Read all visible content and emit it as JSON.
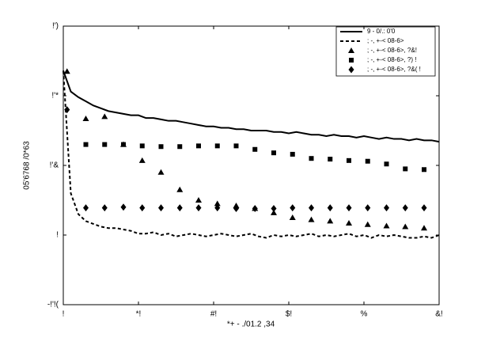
{
  "chart_data": {
    "type": "line",
    "xlabel": "*+ - ./01.2 ,34",
    "ylabel": "05'6768 /0*63",
    "xlim": [
      0,
      50
    ],
    "xticks": [
      {
        "value": 0,
        "label": "!"
      },
      {
        "value": 10,
        "label": "*!"
      },
      {
        "value": 20,
        "label": "#!"
      },
      {
        "value": 30,
        "label": "$!"
      },
      {
        "value": 40,
        "label": "%"
      },
      {
        "value": 50,
        "label": "&!"
      }
    ],
    "ylim": [
      -0.05,
      0.15
    ],
    "yticks": [
      {
        "value": -0.05,
        "label": "-!'!("
      },
      {
        "value": 0,
        "label": "!"
      },
      {
        "value": 0.05,
        "label": "!'&"
      },
      {
        "value": 0.1,
        "label": "!'*"
      },
      {
        "value": 0.15,
        "label": "!')"
      }
    ],
    "legend": "upper right",
    "series": [
      {
        "name": "9 - 0/.: 0'0",
        "color": "#000",
        "style": "solid",
        "x": [
          0,
          1,
          2,
          3,
          4,
          5,
          6,
          7,
          8,
          9,
          10,
          11,
          12,
          13,
          14,
          15,
          16,
          17,
          18,
          19,
          20,
          21,
          22,
          23,
          24,
          25,
          26,
          27,
          28,
          29,
          30,
          31,
          32,
          33,
          34,
          35,
          36,
          37,
          38,
          39,
          40,
          41,
          42,
          43,
          44,
          45,
          46,
          47,
          48,
          49,
          50
        ],
        "values": [
          0.118,
          0.103,
          0.099,
          0.096,
          0.093,
          0.091,
          0.089,
          0.088,
          0.087,
          0.086,
          0.086,
          0.084,
          0.084,
          0.083,
          0.082,
          0.082,
          0.081,
          0.08,
          0.079,
          0.078,
          0.078,
          0.077,
          0.077,
          0.076,
          0.076,
          0.075,
          0.075,
          0.075,
          0.074,
          0.074,
          0.073,
          0.074,
          0.073,
          0.072,
          0.072,
          0.071,
          0.072,
          0.071,
          0.071,
          0.07,
          0.071,
          0.07,
          0.069,
          0.07,
          0.069,
          0.069,
          0.068,
          0.069,
          0.068,
          0.068,
          0.067
        ]
      },
      {
        "name": "; -, +-< 08-6>",
        "color": "#000",
        "style": "dashed",
        "x": [
          0,
          1,
          2,
          3,
          4,
          5,
          6,
          7,
          8,
          9,
          10,
          11,
          12,
          13,
          14,
          15,
          16,
          17,
          18,
          19,
          20,
          21,
          22,
          23,
          24,
          25,
          26,
          27,
          28,
          29,
          30,
          31,
          32,
          33,
          34,
          35,
          36,
          37,
          38,
          39,
          40,
          41,
          42,
          43,
          44,
          45,
          46,
          47,
          48,
          49,
          50
        ],
        "values": [
          0.118,
          0.03,
          0.015,
          0.01,
          0.008,
          0.006,
          0.005,
          0.005,
          0.004,
          0.003,
          0.001,
          0.001,
          0.002,
          0,
          0.001,
          -0.001,
          0,
          0.001,
          0,
          -0.001,
          0,
          0.001,
          0,
          -0.001,
          0,
          0.001,
          -0.001,
          -0.002,
          0,
          -0.001,
          0,
          -0.001,
          0,
          0.001,
          -0.001,
          0,
          -0.001,
          0,
          0.001,
          -0.001,
          0,
          -0.002,
          0,
          -0.001,
          0,
          -0.001,
          -0.002,
          -0.002,
          -0.001,
          -0.002,
          0
        ]
      },
      {
        "name": "; -, +-< 08-6>, ?&!",
        "color": "#000",
        "marker": "triangle",
        "x": [
          0.5,
          3,
          5.5,
          8,
          10.5,
          13,
          15.5,
          18,
          20.5,
          23,
          25.5,
          28,
          30.5,
          33,
          35.5,
          38,
          40.5,
          43,
          45.5,
          48
        ],
        "values": [
          0.1175,
          0.0835,
          0.085,
          0.065,
          0.0535,
          0.045,
          0.0325,
          0.025,
          0.0225,
          0.021,
          0.019,
          0.016,
          0.0125,
          0.011,
          0.01,
          0.0085,
          0.0075,
          0.0065,
          0.006,
          0.005
        ]
      },
      {
        "name": "; -, +-< 08-6>, ?) !",
        "color": "#000",
        "marker": "square",
        "x": [
          0.5,
          3,
          5.5,
          8,
          10.5,
          13,
          15.5,
          18,
          20.5,
          23,
          25.5,
          28,
          30.5,
          33,
          35.5,
          38,
          40.5,
          43,
          45.5,
          48
        ],
        "values": [
          null,
          0.065,
          0.065,
          0.065,
          0.064,
          0.0635,
          0.0635,
          0.064,
          0.064,
          0.064,
          0.0615,
          0.059,
          0.058,
          0.055,
          0.0545,
          0.0535,
          0.053,
          0.051,
          0.0475,
          0.047
        ]
      },
      {
        "name": "; -, +-< 08-6>, ?&( !",
        "color": "#000",
        "marker": "diamond",
        "x": [
          0.5,
          3,
          5.5,
          8,
          10.5,
          13,
          15.5,
          18,
          20.5,
          23,
          25.5,
          28,
          30.5,
          33,
          35.5,
          38,
          40.5,
          43,
          45.5,
          48
        ],
        "values": [
          0.09,
          0.0195,
          0.0195,
          0.02,
          0.0195,
          0.0195,
          0.0195,
          0.0195,
          0.0195,
          0.019,
          0.019,
          0.019,
          0.0195,
          0.0195,
          0.0195,
          0.0195,
          0.0195,
          0.0195,
          0.0195,
          0.0195
        ]
      }
    ]
  }
}
